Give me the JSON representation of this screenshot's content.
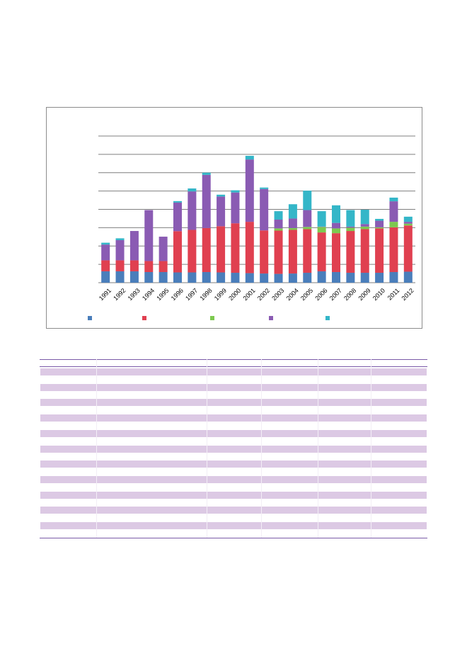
{
  "chart_data": {
    "type": "bar",
    "stacked": true,
    "categories": [
      "1991",
      "1992",
      "1993",
      "1994",
      "1995",
      "1996",
      "1997",
      "1998",
      "1999",
      "2000",
      "2001",
      "2002",
      "2003",
      "2004",
      "2005",
      "2006",
      "2007",
      "2008",
      "2009",
      "2010",
      "2011",
      "2012"
    ],
    "series": [
      {
        "color": "#4a7ebb",
        "values": [
          6.2,
          6.2,
          6.2,
          5.8,
          5.8,
          5.6,
          5.6,
          5.8,
          5.6,
          5.4,
          5.2,
          5.0,
          4.8,
          5.0,
          5.4,
          6.2,
          5.8,
          5.4,
          5.4,
          5.4,
          5.8,
          6.0
        ]
      },
      {
        "color": "#e04050",
        "values": [
          6.0,
          6.0,
          6.0,
          6.0,
          6.0,
          22.5,
          23.2,
          24.0,
          25.2,
          27.0,
          28.0,
          23.5,
          23.6,
          23.8,
          23.8,
          21.2,
          21.2,
          22.8,
          23.8,
          24.2,
          24.4,
          25.2
        ]
      },
      {
        "color": "#7dc94f",
        "values": [
          0,
          0,
          0,
          0,
          0,
          0,
          0,
          0,
          0,
          0,
          0,
          0,
          1.2,
          1.0,
          1.2,
          3.0,
          2.6,
          1.8,
          1.4,
          0.6,
          3.0,
          1.0
        ]
      },
      {
        "color": "#8a5bb3",
        "values": [
          8.6,
          11.0,
          16.0,
          27.8,
          13.3,
          15.6,
          21.0,
          29.0,
          16.2,
          16.8,
          34.0,
          22.6,
          4.8,
          5.2,
          9.2,
          0.2,
          3.0,
          0.6,
          1.4,
          3.6,
          11.2,
          1.0
        ]
      },
      {
        "color": "#34b6c8",
        "values": [
          1.0,
          1.0,
          0,
          0,
          0,
          0.8,
          1.6,
          1.2,
          1.0,
          1.2,
          2.0,
          0.8,
          4.6,
          7.8,
          10.6,
          8.4,
          9.6,
          9.0,
          7.8,
          1.0,
          2.0,
          2.8
        ]
      }
    ],
    "ylim": [
      0,
      80
    ],
    "gridlines": [
      10,
      20,
      30,
      40,
      50,
      60,
      70,
      80
    ],
    "legend_position": "bottom",
    "grid": true
  },
  "table": {
    "row_count": 11
  }
}
